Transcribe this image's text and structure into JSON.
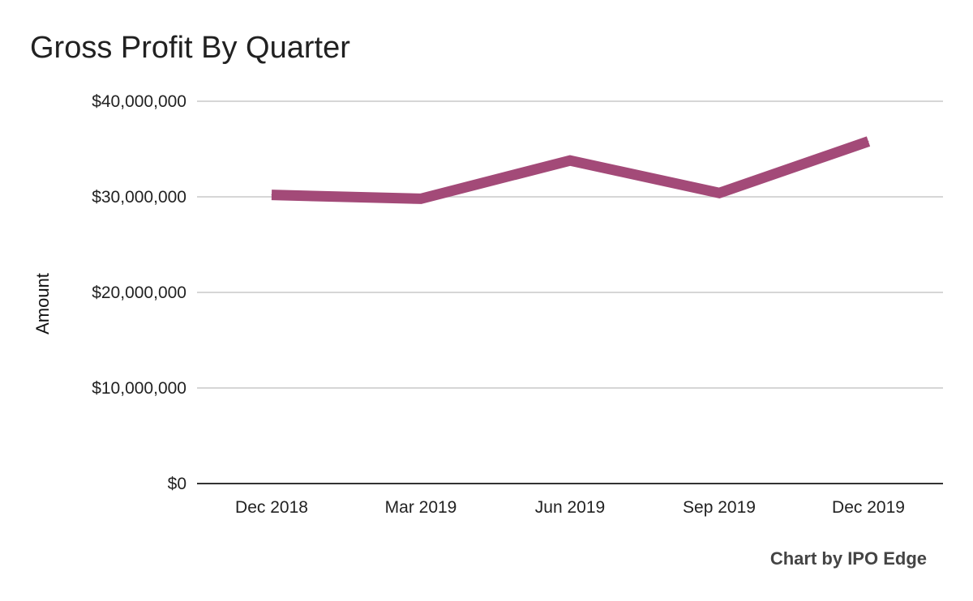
{
  "chart_data": {
    "type": "line",
    "title": "Gross Profit By Quarter",
    "xlabel": "",
    "ylabel": "Amount",
    "categories": [
      "Dec 2018",
      "Mar 2019",
      "Jun 2019",
      "Sep 2019",
      "Dec 2019"
    ],
    "series": [
      {
        "values": [
          30200000,
          29800000,
          33800000,
          30400000,
          35800000
        ]
      }
    ],
    "ylim": [
      0,
      40000000
    ],
    "yticks": [
      0,
      10000000,
      20000000,
      30000000,
      40000000
    ],
    "ytick_labels": [
      "$0",
      "$10,000,000",
      "$20,000,000",
      "$30,000,000",
      "$40,000,000"
    ],
    "grid": true,
    "legend": "none",
    "line_color": "#a34a78",
    "grid_color": "#c8c8c8",
    "axis_color": "#333333"
  },
  "credit": "Chart by IPO Edge"
}
